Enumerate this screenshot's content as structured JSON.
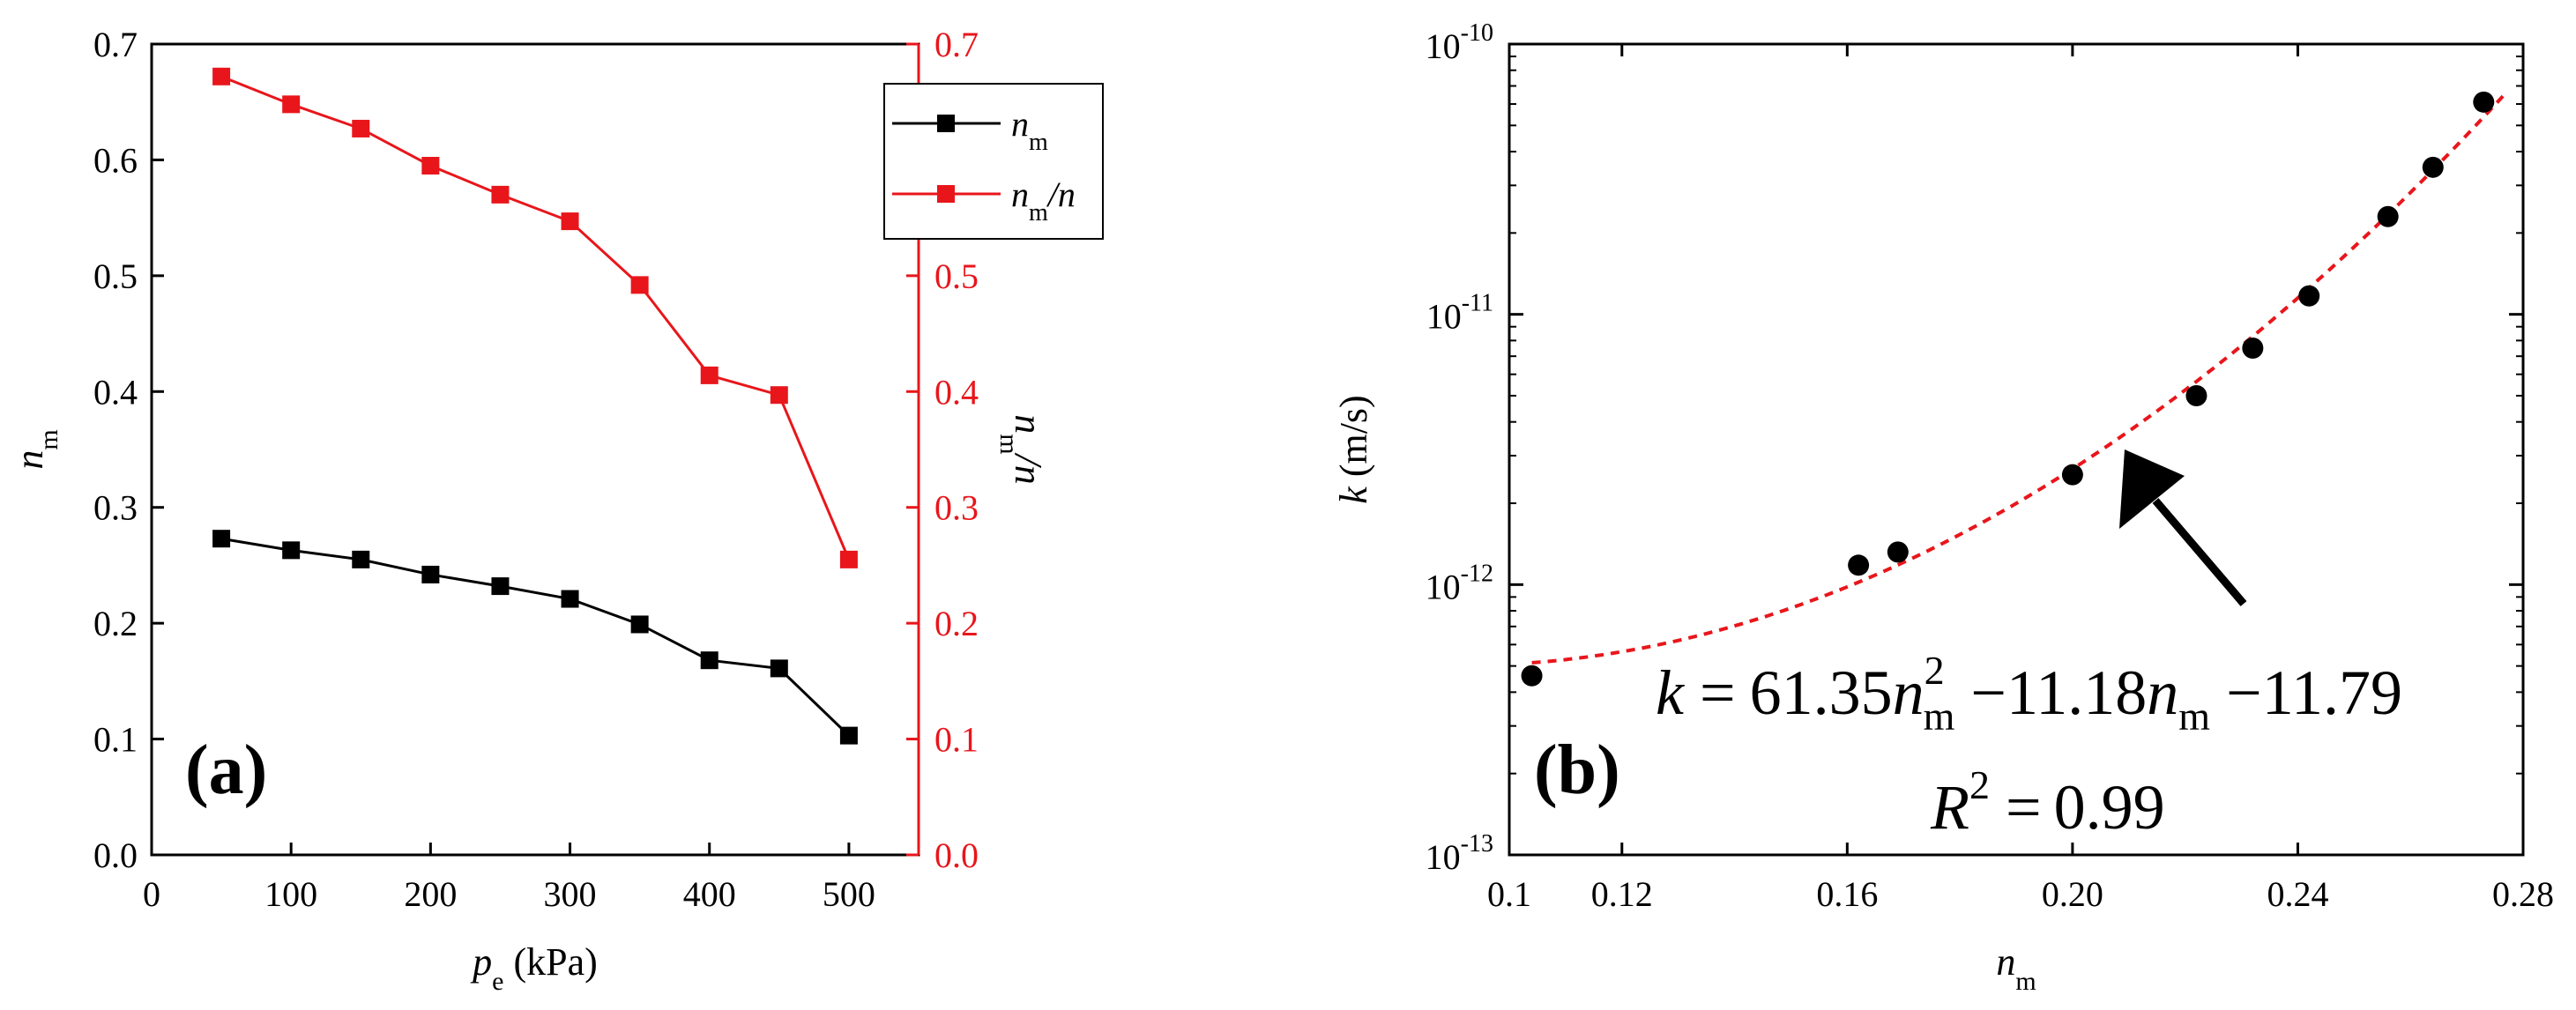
{
  "colors": {
    "black": "#000000",
    "red": "#e8161b",
    "fit": "#e8161b"
  },
  "chart_data": [
    {
      "panel": "a",
      "type": "line",
      "panel_label": "(a)",
      "xlabel_main": "p",
      "xlabel_sub": "e",
      "xlabel_unit": " (kPa)",
      "ylabel_left_main": "n",
      "ylabel_left_sub": "m",
      "ylabel_right_main": "n",
      "ylabel_right_sub": "m",
      "ylabel_right_tail": "/n",
      "xlim": [
        0,
        550
      ],
      "ylim_left": [
        0,
        0.7
      ],
      "ylim_right": [
        0,
        0.7
      ],
      "xticks": [
        0,
        100,
        200,
        300,
        400,
        500
      ],
      "xtick_labels": [
        "0",
        "100",
        "200",
        "300",
        "400",
        "500"
      ],
      "yticks": [
        0,
        0.1,
        0.2,
        0.3,
        0.4,
        0.5,
        0.6,
        0.7
      ],
      "ytick_labels": [
        "0.0",
        "0.1",
        "0.2",
        "0.3",
        "0.4",
        "0.5",
        "0.6",
        "0.7"
      ],
      "x": [
        50,
        100,
        150,
        200,
        250,
        300,
        350,
        400,
        450,
        500
      ],
      "series": [
        {
          "name": "n_m",
          "label_main": "n",
          "label_sub": "m",
          "label_tail": "",
          "axis": "left",
          "values": [
            0.273,
            0.263,
            0.255,
            0.242,
            0.232,
            0.221,
            0.199,
            0.168,
            0.161,
            0.103
          ]
        },
        {
          "name": "n_m/n",
          "label_main": "n",
          "label_sub": "m",
          "label_tail": "/n",
          "axis": "right",
          "values": [
            0.672,
            0.648,
            0.627,
            0.595,
            0.57,
            0.547,
            0.492,
            0.414,
            0.397,
            0.255
          ]
        }
      ],
      "legend_position": "top-right"
    },
    {
      "panel": "b",
      "type": "scatter",
      "panel_label": "(b)",
      "xlabel_main": "n",
      "xlabel_sub": "m",
      "ylabel_main": "k",
      "ylabel_unit": " (m/s)",
      "xlim": [
        0.1,
        0.28
      ],
      "ylim_log10": [
        -13,
        -10
      ],
      "xticks": [
        0.1,
        0.12,
        0.16,
        0.2,
        0.24,
        0.28
      ],
      "xtick_labels": [
        "0.1",
        "0.12",
        "0.16",
        "0.20",
        "0.24",
        "0.28"
      ],
      "yticks_log10": [
        -13,
        -12,
        -11,
        -10
      ],
      "ytick_labels": [
        "-13",
        "-12",
        "-11",
        "-10"
      ],
      "ytick_base": "10",
      "points": {
        "x": [
          0.104,
          0.162,
          0.169,
          0.2,
          0.222,
          0.232,
          0.242,
          0.256,
          0.264,
          0.273
        ],
        "y": [
          4.6e-13,
          1.18e-12,
          1.32e-12,
          2.55e-12,
          5e-12,
          7.5e-12,
          1.17e-11,
          2.3e-11,
          3.5e-11,
          6.1e-11
        ]
      },
      "fit": {
        "type": "quadratic_in_log10",
        "a": 61.35,
        "b": -11.18,
        "c": -11.79,
        "style": "dashed"
      },
      "equation": {
        "k": "k",
        "eq1": "=",
        "a_value": "61.35",
        "n": "n",
        "sup2": "2",
        "sub_m": "m",
        "op1": "−",
        "b_value": "11.18",
        "op2": "−",
        "c_value": "11.79",
        "R": "R",
        "eq2": "=",
        "r2_value": "0.99"
      },
      "annotation": "arrow pointing to fit curve"
    }
  ]
}
